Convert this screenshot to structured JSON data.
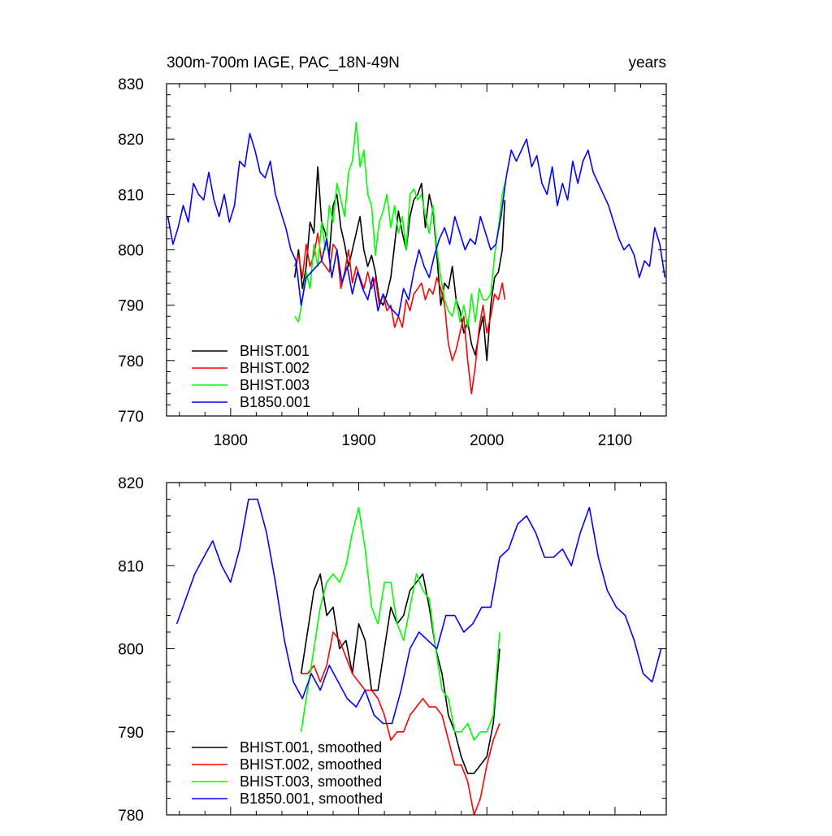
{
  "chart_data": [
    {
      "type": "line",
      "title": "300m-700m IAGE, PAC_18N-49N",
      "units": "years",
      "xlim": [
        1750,
        2140
      ],
      "ylim": [
        770,
        830
      ],
      "xticks": [
        1800,
        1900,
        2000,
        2100
      ],
      "yticks": [
        770,
        780,
        790,
        800,
        810,
        820,
        830
      ],
      "xtick_labels": [
        "1800",
        "1900",
        "2000",
        "2100"
      ],
      "ytick_labels": [
        "770",
        "780",
        "790",
        "800",
        "810",
        "820",
        "830"
      ],
      "legend_position": "bottom-left",
      "series": [
        {
          "name": "BHIST.001",
          "color": "#000000",
          "x": [
            1850,
            1853,
            1856,
            1859,
            1862,
            1865,
            1868,
            1871,
            1874,
            1877,
            1880,
            1883,
            1886,
            1889,
            1892,
            1895,
            1898,
            1901,
            1904,
            1907,
            1910,
            1913,
            1916,
            1919,
            1922,
            1925,
            1928,
            1931,
            1934,
            1937,
            1940,
            1943,
            1946,
            1949,
            1952,
            1955,
            1958,
            1961,
            1964,
            1967,
            1970,
            1973,
            1976,
            1979,
            1982,
            1985,
            1988,
            1991,
            1994,
            1997,
            2000,
            2003,
            2006,
            2009,
            2012,
            2014
          ],
          "y": [
            795,
            800,
            793,
            797,
            805,
            803,
            815,
            805,
            803,
            799,
            808,
            810,
            804,
            801,
            797,
            800,
            803,
            806,
            800,
            797,
            799,
            796,
            791,
            790,
            792,
            795,
            801,
            807,
            803,
            800,
            806,
            809,
            810,
            812,
            804,
            810,
            807,
            799,
            790,
            794,
            793,
            797,
            791,
            789,
            785,
            787,
            783,
            781,
            785,
            788,
            780,
            790,
            795,
            796,
            800,
            809
          ]
        },
        {
          "name": "BHIST.002",
          "color": "#ff0000",
          "x": [
            1850,
            1853,
            1856,
            1859,
            1862,
            1865,
            1868,
            1871,
            1874,
            1877,
            1880,
            1883,
            1886,
            1889,
            1892,
            1895,
            1898,
            1901,
            1904,
            1907,
            1910,
            1913,
            1916,
            1919,
            1922,
            1925,
            1928,
            1931,
            1934,
            1937,
            1940,
            1943,
            1946,
            1949,
            1952,
            1955,
            1958,
            1961,
            1964,
            1967,
            1970,
            1973,
            1976,
            1979,
            1982,
            1985,
            1988,
            1991,
            1994,
            1997,
            2000,
            2003,
            2006,
            2009,
            2012,
            2014
          ],
          "y": [
            797,
            799,
            795,
            801,
            797,
            799,
            803,
            798,
            797,
            796,
            801,
            800,
            793,
            796,
            800,
            794,
            797,
            795,
            793,
            796,
            793,
            795,
            790,
            792,
            789,
            790,
            786,
            788,
            786,
            791,
            789,
            792,
            793,
            794,
            791,
            793,
            792,
            795,
            793,
            790,
            783,
            780,
            782,
            785,
            788,
            780,
            774,
            779,
            786,
            790,
            785,
            788,
            792,
            791,
            794,
            791
          ]
        },
        {
          "name": "BHIST.003",
          "color": "#00ff00",
          "x": [
            1850,
            1853,
            1856,
            1859,
            1862,
            1865,
            1868,
            1871,
            1874,
            1877,
            1880,
            1883,
            1886,
            1889,
            1892,
            1895,
            1898,
            1901,
            1904,
            1907,
            1910,
            1913,
            1916,
            1919,
            1922,
            1925,
            1928,
            1931,
            1934,
            1937,
            1940,
            1943,
            1946,
            1949,
            1952,
            1955,
            1958,
            1961,
            1964,
            1967,
            1970,
            1973,
            1976,
            1979,
            1982,
            1985,
            1988,
            1991,
            1994,
            1997,
            2000,
            2003,
            2006,
            2009,
            2012,
            2014
          ],
          "y": [
            788,
            787,
            791,
            796,
            793,
            801,
            797,
            805,
            800,
            808,
            805,
            812,
            809,
            806,
            814,
            816,
            823,
            815,
            818,
            810,
            808,
            799,
            805,
            807,
            810,
            804,
            808,
            803,
            806,
            800,
            810,
            811,
            809,
            810,
            806,
            803,
            808,
            800,
            795,
            791,
            789,
            788,
            791,
            787,
            790,
            786,
            792,
            787,
            793,
            791,
            791,
            792,
            799,
            804,
            810,
            812
          ]
        },
        {
          "name": "B1850.001",
          "color": "#0000ff",
          "x": [
            1751,
            1755,
            1759,
            1763,
            1767,
            1771,
            1775,
            1779,
            1783,
            1787,
            1791,
            1795,
            1799,
            1803,
            1807,
            1811,
            1815,
            1819,
            1823,
            1827,
            1831,
            1835,
            1839,
            1843,
            1847,
            1851,
            1855,
            1859,
            1863,
            1867,
            1871,
            1875,
            1879,
            1883,
            1887,
            1891,
            1895,
            1899,
            1903,
            1907,
            1911,
            1915,
            1919,
            1923,
            1927,
            1931,
            1935,
            1939,
            1943,
            1947,
            1951,
            1955,
            1959,
            1963,
            1967,
            1971,
            1975,
            1979,
            1983,
            1987,
            1991,
            1995,
            1999,
            2003,
            2007,
            2011,
            2015,
            2019,
            2023,
            2027,
            2031,
            2035,
            2039,
            2043,
            2047,
            2051,
            2055,
            2059,
            2063,
            2067,
            2071,
            2075,
            2079,
            2083,
            2087,
            2091,
            2095,
            2099,
            2103,
            2107,
            2111,
            2115,
            2119,
            2123,
            2127,
            2131,
            2135,
            2139
          ],
          "y": [
            806,
            801,
            804,
            808,
            805,
            812,
            810,
            809,
            814,
            809,
            806,
            810,
            805,
            808,
            816,
            815,
            821,
            818,
            814,
            813,
            816,
            810,
            807,
            804,
            800,
            798,
            790,
            795,
            796,
            797,
            798,
            802,
            795,
            800,
            794,
            797,
            792,
            796,
            793,
            791,
            795,
            789,
            792,
            790,
            789,
            788,
            793,
            791,
            796,
            800,
            797,
            795,
            799,
            802,
            804,
            801,
            806,
            803,
            800,
            802,
            801,
            806,
            803,
            800,
            801,
            806,
            813,
            818,
            816,
            818,
            820,
            815,
            817,
            812,
            810,
            815,
            808,
            812,
            809,
            816,
            812,
            816,
            818,
            814,
            812,
            810,
            808,
            805,
            802,
            800,
            801,
            799,
            795,
            798,
            797,
            804,
            801,
            795
          ]
        }
      ],
      "legend": [
        "BHIST.001",
        "BHIST.002",
        "BHIST.003",
        "B1850.001"
      ]
    },
    {
      "type": "line",
      "xlim": [
        1750,
        2140
      ],
      "ylim": [
        780,
        820
      ],
      "xticks": [
        1800,
        1900,
        2000,
        2100
      ],
      "yticks": [
        780,
        790,
        800,
        810,
        820
      ],
      "ytick_labels": [
        "780",
        "790",
        "800",
        "810",
        "820"
      ],
      "legend_position": "bottom-left",
      "series": [
        {
          "name": "BHIST.001, smoothed",
          "color": "#000000",
          "x": [
            1855,
            1860,
            1865,
            1870,
            1875,
            1880,
            1885,
            1890,
            1895,
            1900,
            1905,
            1910,
            1915,
            1920,
            1925,
            1930,
            1935,
            1940,
            1945,
            1950,
            1955,
            1960,
            1965,
            1970,
            1975,
            1980,
            1985,
            1990,
            1995,
            2000,
            2005,
            2010
          ],
          "y": [
            797,
            802,
            807,
            809,
            804,
            805,
            800,
            801,
            797,
            803,
            801,
            795,
            795,
            800,
            805,
            803,
            804,
            807,
            808,
            809,
            805,
            800,
            797,
            792,
            790,
            787,
            785,
            785,
            786,
            787,
            791,
            800
          ]
        },
        {
          "name": "BHIST.002, smoothed",
          "color": "#ff0000",
          "x": [
            1855,
            1860,
            1865,
            1870,
            1875,
            1880,
            1885,
            1890,
            1895,
            1900,
            1905,
            1910,
            1915,
            1920,
            1925,
            1930,
            1935,
            1940,
            1945,
            1950,
            1955,
            1960,
            1965,
            1970,
            1975,
            1980,
            1985,
            1990,
            1995,
            2000,
            2005,
            2010
          ],
          "y": [
            797,
            797,
            798,
            796,
            798,
            802,
            801,
            799,
            797,
            796,
            795,
            795,
            794,
            792,
            789,
            790,
            790,
            792,
            793,
            794,
            793,
            793,
            792,
            789,
            786,
            786,
            784,
            780,
            782,
            786,
            789,
            791
          ]
        },
        {
          "name": "BHIST.003, smoothed",
          "color": "#00ff00",
          "x": [
            1855,
            1860,
            1865,
            1870,
            1875,
            1880,
            1885,
            1890,
            1895,
            1900,
            1905,
            1910,
            1915,
            1920,
            1925,
            1930,
            1935,
            1940,
            1945,
            1950,
            1955,
            1960,
            1965,
            1970,
            1975,
            1980,
            1985,
            1990,
            1995,
            2000,
            2005,
            2010
          ],
          "y": [
            790,
            795,
            800,
            805,
            808,
            809,
            808,
            810,
            814,
            817,
            812,
            805,
            803,
            808,
            808,
            803,
            801,
            805,
            809,
            807,
            806,
            800,
            795,
            794,
            790,
            790,
            791,
            789,
            790,
            790,
            792,
            802
          ]
        },
        {
          "name": "B1850.001, smoothed",
          "color": "#0000ff",
          "x": [
            1758,
            1765,
            1772,
            1779,
            1786,
            1793,
            1800,
            1807,
            1814,
            1821,
            1828,
            1835,
            1842,
            1849,
            1856,
            1863,
            1870,
            1877,
            1884,
            1891,
            1898,
            1905,
            1912,
            1919,
            1926,
            1933,
            1940,
            1947,
            1954,
            1961,
            1968,
            1975,
            1982,
            1989,
            1996,
            2003,
            2010,
            2017,
            2024,
            2031,
            2038,
            2045,
            2052,
            2059,
            2066,
            2073,
            2080,
            2087,
            2094,
            2101,
            2108,
            2115,
            2122,
            2129,
            2136
          ],
          "y": [
            803,
            806,
            809,
            811,
            813,
            810,
            808,
            812,
            818,
            818,
            814,
            808,
            801,
            796,
            794,
            797,
            795,
            798,
            796,
            794,
            793,
            795,
            792,
            791,
            791,
            795,
            800,
            802,
            801,
            800,
            804,
            804,
            802,
            803,
            805,
            805,
            811,
            812,
            815,
            816,
            814,
            811,
            811,
            812,
            810,
            814,
            817,
            811,
            807,
            805,
            804,
            801,
            797,
            796,
            800
          ]
        }
      ],
      "legend": [
        "BHIST.001, smoothed",
        "BHIST.002, smoothed",
        "BHIST.003, smoothed",
        "B1850.001, smoothed"
      ]
    }
  ]
}
